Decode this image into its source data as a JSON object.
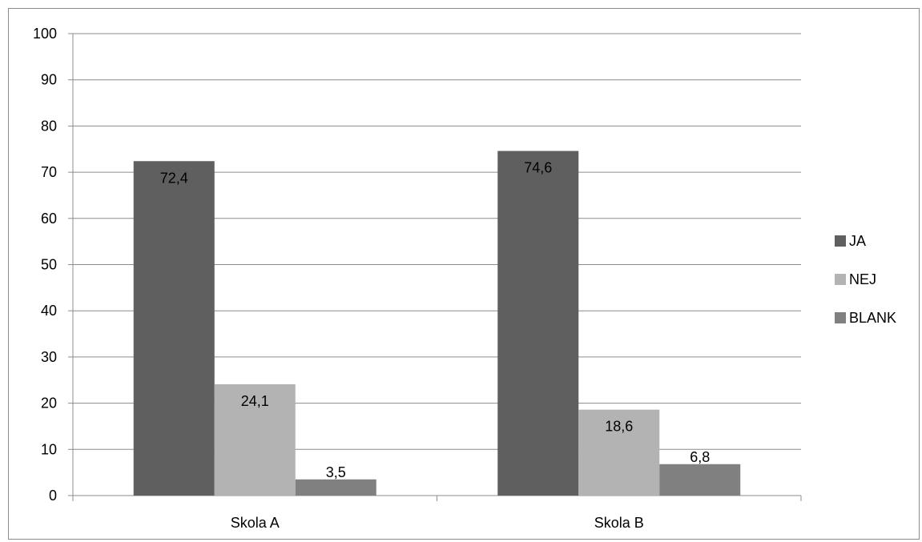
{
  "chart_data": {
    "type": "bar",
    "title": "",
    "xlabel": "",
    "ylabel": "",
    "categories": [
      "Skola A",
      "Skola B"
    ],
    "series": [
      {
        "name": "JA",
        "values": [
          72.4,
          74.6
        ],
        "labels": [
          "72,4",
          "74,6"
        ],
        "color": "#5f5f5f"
      },
      {
        "name": "NEJ",
        "values": [
          24.1,
          18.6
        ],
        "labels": [
          "24,1",
          "18,6"
        ],
        "color": "#b3b3b3"
      },
      {
        "name": "BLANK",
        "values": [
          3.5,
          6.8
        ],
        "labels": [
          "3,5",
          "6,8"
        ],
        "color": "#808080"
      }
    ],
    "ylim": [
      0,
      100
    ],
    "yticks": [
      "0",
      "10",
      "20",
      "30",
      "40",
      "50",
      "60",
      "70",
      "80",
      "90",
      "100"
    ],
    "grid": true,
    "legend_position": "right"
  }
}
